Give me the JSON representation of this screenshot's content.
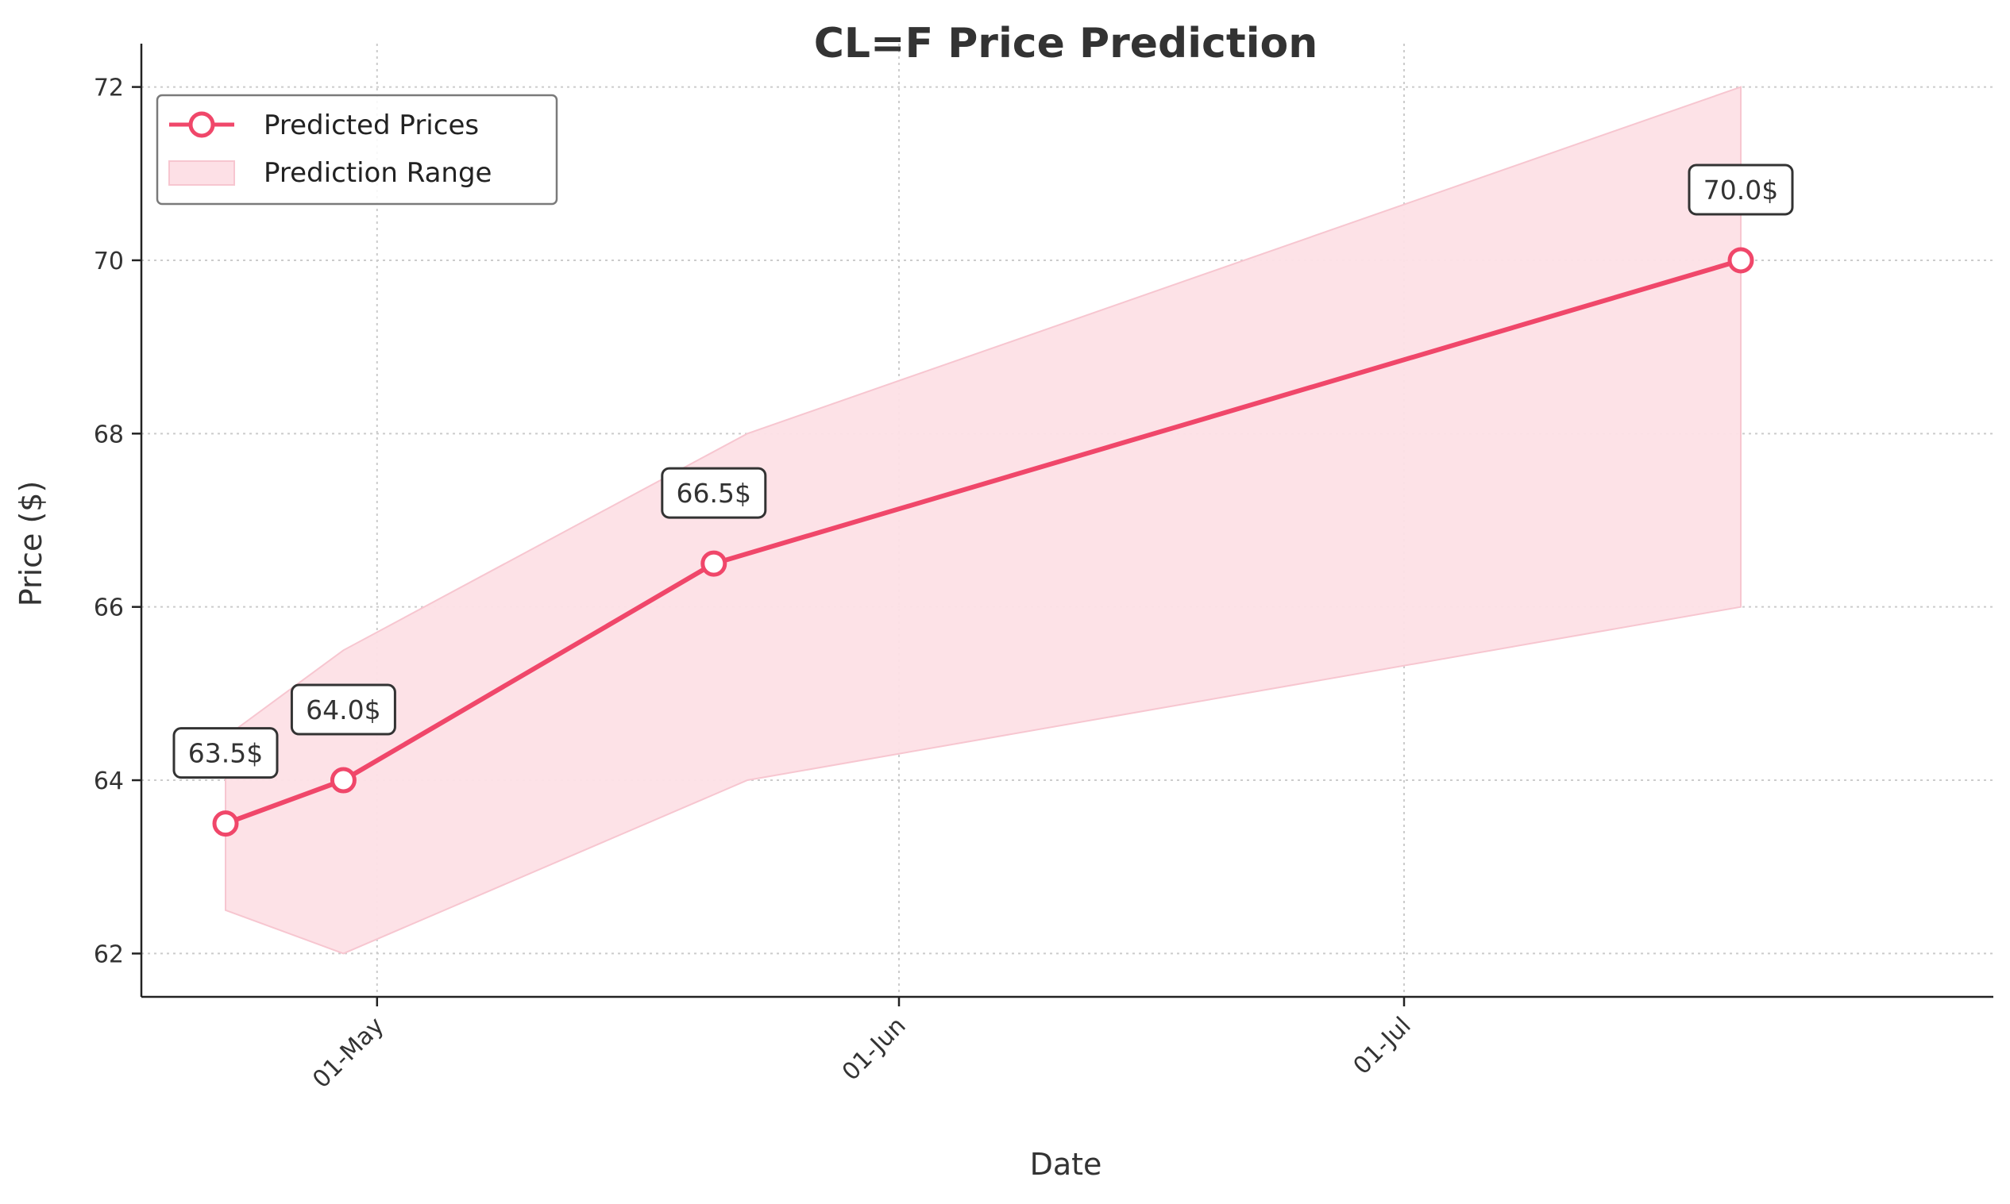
{
  "chart_data": {
    "type": "line",
    "title": "CL=F Price Prediction",
    "xlabel": "Date",
    "ylabel": "Price ($)",
    "x_tick_labels": [
      {
        "date": "2025-05-01",
        "label": "01-May"
      },
      {
        "date": "2025-06-01",
        "label": "01-Jun"
      },
      {
        "date": "2025-07-01",
        "label": "01-Jul"
      }
    ],
    "y_ticks": [
      62,
      64,
      66,
      68,
      70,
      72
    ],
    "xlim": [
      "2025-04-17",
      "2025-08-05"
    ],
    "ylim": [
      61.5,
      72.5
    ],
    "grid": true,
    "legend_position": "top-left",
    "series": [
      {
        "name": "Predicted Prices",
        "color": "#f0476a",
        "x": [
          "2025-04-22",
          "2025-04-29",
          "2025-05-21",
          "2025-07-21"
        ],
        "y": [
          63.5,
          64.0,
          66.5,
          70.0
        ],
        "labels": [
          "63.5$",
          "64.0$",
          "66.5$",
          "70.0$"
        ]
      }
    ],
    "band": {
      "name": "Prediction Range",
      "color": "#fde0e6",
      "x": [
        "2025-04-22",
        "2025-04-29",
        "2025-05-23",
        "2025-07-21"
      ],
      "lower": [
        62.5,
        62.0,
        64.0,
        66.0
      ],
      "upper": [
        64.5,
        65.5,
        68.0,
        72.0
      ]
    }
  }
}
